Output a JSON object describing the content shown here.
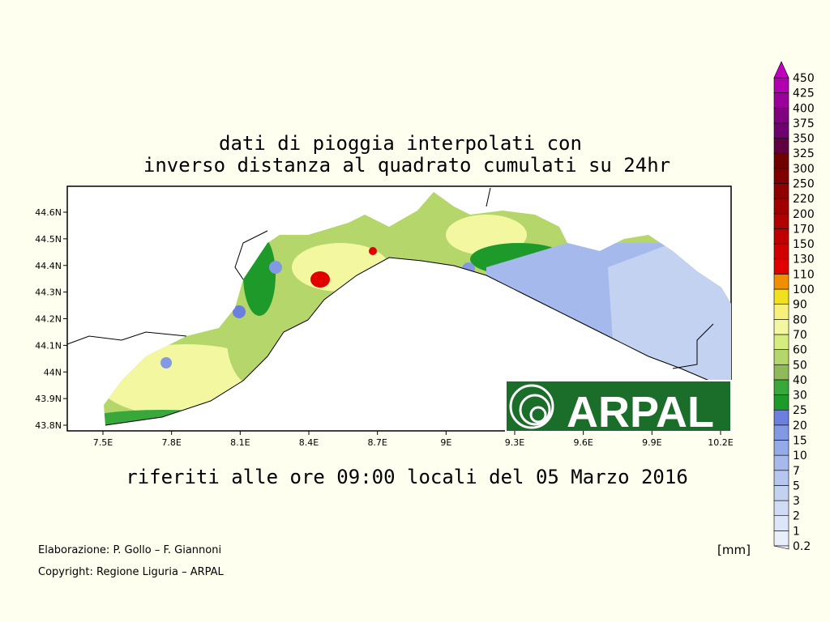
{
  "title": [
    "dati di pioggia interpolati con",
    "inverso distanza al quadrato cumulati su 24hr"
  ],
  "subtitle": "riferiti alle ore 09:00 locali del 05 Marzo 2016",
  "map": {
    "lon_ticks": [
      "7.5E",
      "7.8E",
      "8.1E",
      "8.4E",
      "8.7E",
      "9E",
      "9.3E",
      "9.6E",
      "9.9E",
      "10.2E"
    ],
    "lat_ticks": [
      "43.8N",
      "43.9N",
      "44N",
      "44.1N",
      "44.2N",
      "44.3N",
      "44.4N",
      "44.5N",
      "44.6N"
    ],
    "logo": "ARPAL"
  },
  "colorbar": {
    "unit": "[mm]",
    "levels": [
      0.2,
      1,
      2,
      3,
      5,
      7,
      10,
      15,
      20,
      25,
      30,
      40,
      50,
      60,
      70,
      80,
      90,
      100,
      110,
      130,
      150,
      170,
      200,
      220,
      250,
      300,
      325,
      350,
      375,
      400,
      425,
      450
    ],
    "colors": [
      "#e8eefa",
      "#dde6f8",
      "#d0dcf5",
      "#c4d2f2",
      "#b6c6ef",
      "#a6b9ec",
      "#95aae8",
      "#8399e4",
      "#6a7fde",
      "#1e9a2a",
      "#38a83a",
      "#8fba5a",
      "#b4d66a",
      "#d6ec7e",
      "#f2f7a0",
      "#f7f07a",
      "#f0e020",
      "#f09000",
      "#e00000",
      "#d00000",
      "#c00000",
      "#b00000",
      "#a00000",
      "#900000",
      "#800000",
      "#700000",
      "#600040",
      "#700070",
      "#800080",
      "#9a009a",
      "#b000b0",
      "#c000c0"
    ]
  },
  "credits": [
    "Elaborazione: P. Gollo – F. Giannoni",
    "Copyright: Regione Liguria – ARPAL"
  ]
}
